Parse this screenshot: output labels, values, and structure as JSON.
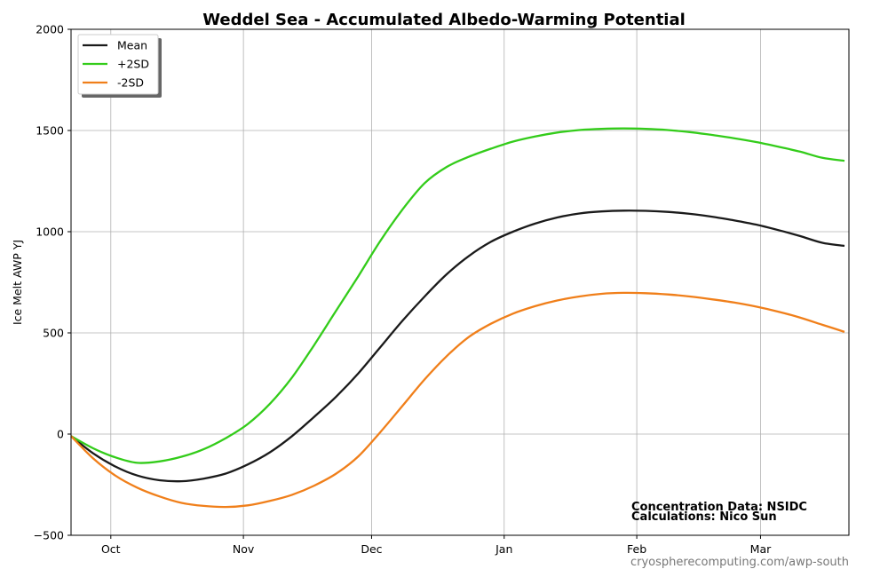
{
  "chart_data": {
    "type": "line",
    "title": "Weddel Sea - Accumulated Albedo-Warming Potential",
    "xlabel": "",
    "ylabel": "Ice Melt AWP  YJ",
    "ylim": [
      -500,
      2000
    ],
    "yticks": [
      -500,
      0,
      500,
      1000,
      1500,
      2000
    ],
    "ytick_labels": [
      "−500",
      "0",
      "500",
      "1000",
      "1500",
      "2000"
    ],
    "xlim": [
      0,
      176
    ],
    "x_unit": "days from start of season",
    "xticks": [
      {
        "x": 9,
        "label": "Oct"
      },
      {
        "x": 39,
        "label": "Nov"
      },
      {
        "x": 68,
        "label": "Dec"
      },
      {
        "x": 98,
        "label": "Jan"
      },
      {
        "x": 128,
        "label": "Feb"
      },
      {
        "x": 156,
        "label": "Mar"
      }
    ],
    "grid": true,
    "legend_position": "top-left",
    "x": [
      0,
      5,
      10,
      15,
      20,
      25,
      30,
      35,
      40,
      45,
      50,
      55,
      60,
      65,
      70,
      75,
      80,
      85,
      90,
      95,
      100,
      105,
      110,
      115,
      120,
      125,
      130,
      135,
      140,
      145,
      150,
      155,
      160,
      165,
      170,
      175
    ],
    "series": [
      {
        "name": "Mean",
        "color": "#1a1a1a",
        "values": [
          -10,
          -95,
          -160,
          -205,
          -228,
          -233,
          -220,
          -195,
          -150,
          -90,
          -10,
          85,
          185,
          300,
          430,
          560,
          680,
          790,
          880,
          950,
          1000,
          1040,
          1070,
          1090,
          1100,
          1104,
          1103,
          1098,
          1088,
          1074,
          1056,
          1035,
          1008,
          978,
          945,
          930
        ]
      },
      {
        "name": "+2SD",
        "color": "#33cc1a",
        "values": [
          -10,
          -70,
          -115,
          -142,
          -135,
          -112,
          -75,
          -20,
          50,
          150,
          280,
          440,
          610,
          780,
          955,
          1110,
          1240,
          1320,
          1370,
          1410,
          1445,
          1470,
          1490,
          1502,
          1508,
          1510,
          1508,
          1502,
          1492,
          1478,
          1462,
          1443,
          1420,
          1395,
          1365,
          1350
        ]
      },
      {
        "name": "-2SD",
        "color": "#f07f1a",
        "values": [
          -10,
          -120,
          -205,
          -265,
          -308,
          -340,
          -355,
          -360,
          -352,
          -330,
          -300,
          -255,
          -195,
          -110,
          10,
          140,
          270,
          385,
          480,
          545,
          595,
          632,
          660,
          680,
          693,
          698,
          696,
          690,
          680,
          666,
          650,
          630,
          605,
          575,
          540,
          505
        ]
      }
    ],
    "annotations": [
      "Concentration Data: NSIDC",
      "Calculations: Nico Sun"
    ]
  },
  "footer": {
    "url": "cryospherecomputing.com/awp-south"
  }
}
